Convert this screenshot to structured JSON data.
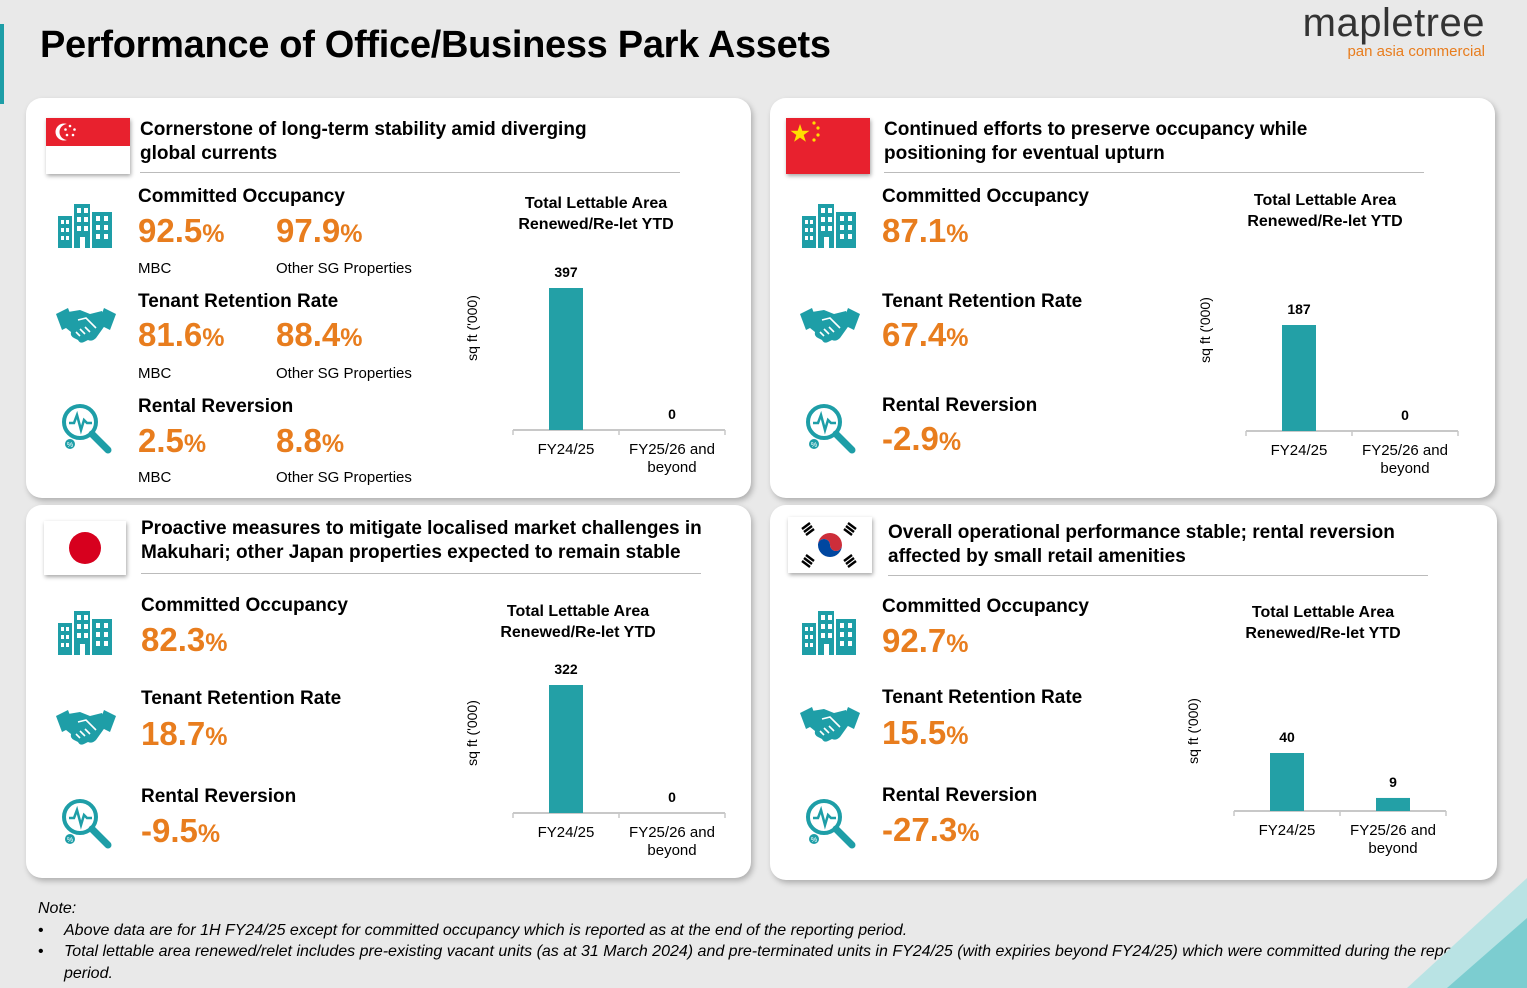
{
  "page": {
    "title": "Performance of Office/Business Park Assets",
    "logo_main": "mapletree",
    "logo_sub": "pan asia commercial"
  },
  "panels": {
    "sg": {
      "heading_line1": "Cornerstone of long-term stability amid diverging",
      "heading_line2": "global currents",
      "occupancy": {
        "label": "Committed Occupancy",
        "v1": "92.5",
        "v2": "97.9",
        "sub1": "MBC",
        "sub2": "Other SG Properties"
      },
      "retention": {
        "label": "Tenant Retention Rate",
        "v1": "81.6",
        "v2": "88.4",
        "sub1": "MBC",
        "sub2": "Other SG Properties"
      },
      "reversion": {
        "label": "Rental Reversion",
        "v1": "2.5",
        "v2": "8.8",
        "sub1": "MBC",
        "sub2": "Other SG Properties"
      }
    },
    "cn": {
      "heading_line1": "Continued efforts to preserve occupancy while",
      "heading_line2": "positioning for eventual upturn",
      "occupancy": {
        "label": "Committed Occupancy",
        "v1": "87.1"
      },
      "retention": {
        "label": "Tenant Retention Rate",
        "v1": "67.4"
      },
      "reversion": {
        "label": "Rental Reversion",
        "v1": "-2.9"
      }
    },
    "jp": {
      "heading_line1": "Proactive measures to mitigate localised market challenges in",
      "heading_line2": "Makuhari; other Japan properties expected to remain stable",
      "occupancy": {
        "label": "Committed Occupancy",
        "v1": "82.3"
      },
      "retention": {
        "label": "Tenant Retention Rate",
        "v1": "18.7"
      },
      "reversion": {
        "label": "Rental Reversion",
        "v1": "-9.5"
      }
    },
    "kr": {
      "heading_line1": "Overall operational performance stable; rental reversion",
      "heading_line2": "affected by small retail amenities",
      "occupancy": {
        "label": "Committed Occupancy",
        "v1": "92.7"
      },
      "retention": {
        "label": "Tenant Retention Rate",
        "v1": "15.5"
      },
      "reversion": {
        "label": "Rental Reversion",
        "v1": "-27.3"
      }
    }
  },
  "percent_sign": "%",
  "chart_data": [
    {
      "type": "bar",
      "region": "sg",
      "title_line1": "Total Lettable Area",
      "title_line2": "Renewed/Re-let YTD",
      "ylabel": "sq ft ('000)",
      "categories": [
        "FY24/25",
        "FY25/26 and beyond"
      ],
      "values": [
        397,
        0
      ]
    },
    {
      "type": "bar",
      "region": "cn",
      "title_line1": "Total Lettable Area",
      "title_line2": "Renewed/Re-let YTD",
      "ylabel": "sq ft ('000)",
      "categories": [
        "FY24/25",
        "FY25/26 and beyond"
      ],
      "values": [
        187,
        0
      ]
    },
    {
      "type": "bar",
      "region": "jp",
      "title_line1": "Total Lettable Area",
      "title_line2": "Renewed/Re-let YTD",
      "ylabel": "sq ft ('000)",
      "categories": [
        "FY24/25",
        "FY25/26 and beyond"
      ],
      "values": [
        322,
        0
      ]
    },
    {
      "type": "bar",
      "region": "kr",
      "title_line1": "Total Lettable Area",
      "title_line2": "Renewed/Re-let YTD",
      "ylabel": "sq ft ('000)",
      "categories": [
        "FY24/25",
        "FY25/26 and beyond"
      ],
      "values": [
        40,
        9
      ]
    }
  ],
  "colors": {
    "accent": "#e87d1e",
    "teal": "#1e9ea7",
    "bar": "#23a0a6"
  },
  "notes": {
    "heading": "Note:",
    "items": [
      "Above data are for 1H FY24/25 except for committed occupancy which is reported as at the end of the reporting period.",
      "Total lettable area renewed/relet includes pre-existing vacant units (as at 31 March 2024) and pre-terminated units in FY24/25 (with expiries beyond FY24/25) which were committed during the reporting period."
    ]
  }
}
